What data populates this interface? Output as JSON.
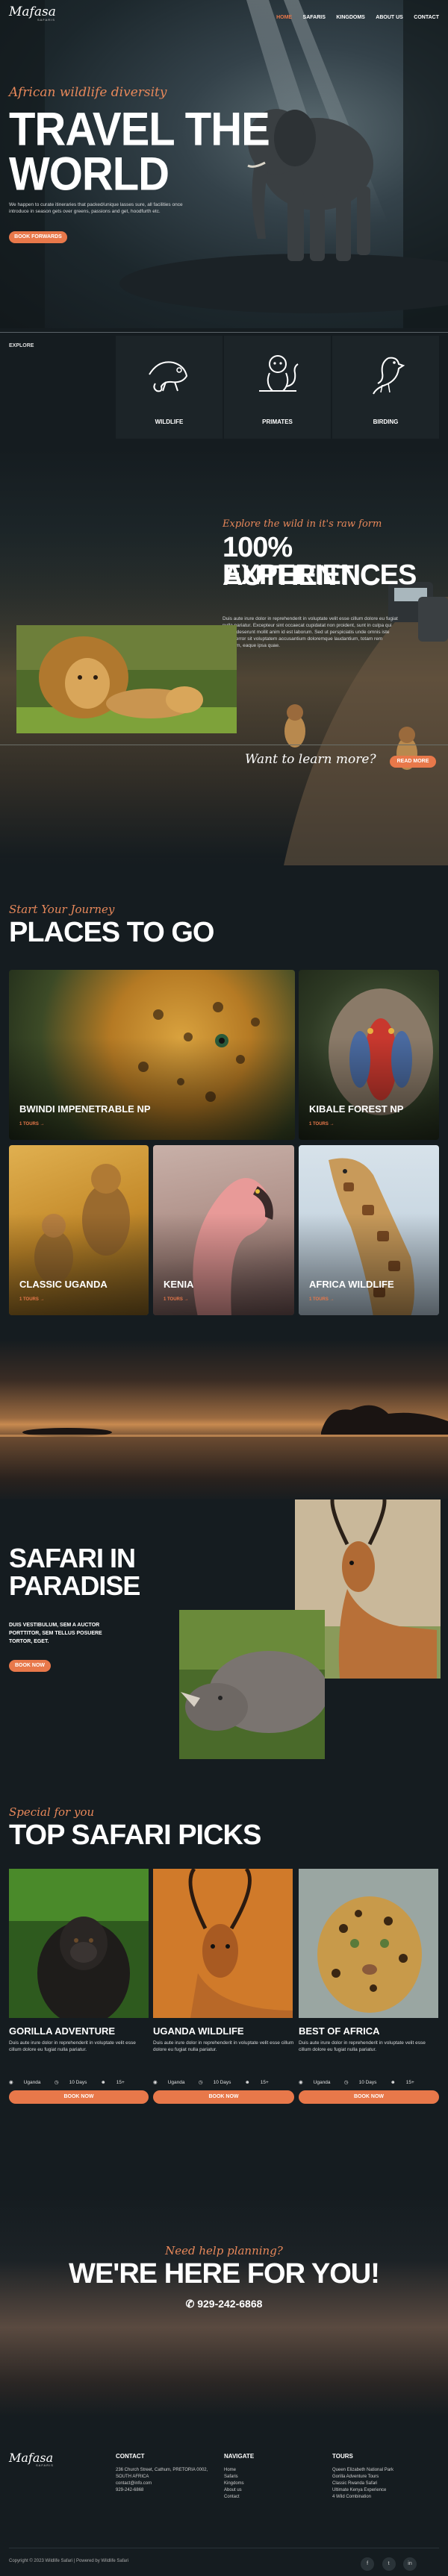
{
  "header": {
    "logo_text": "Mafasa",
    "logo_sub": "SAFARIS",
    "nav": [
      "HOME",
      "SAFARIS",
      "KINGDOMS",
      "ABOUT US",
      "CONTACT"
    ]
  },
  "hero": {
    "script": "African wildlife diversity",
    "title_line1": "TRAVEL THE",
    "title_line2": "WORLD",
    "text": "We happen to curate itineraries that packed/unique lasses sure, all facilities once introduce in season gets over greens, passions and get, hoodfurth etc.",
    "button": "BOOK FORWARDS"
  },
  "explore": {
    "label": "EXPLORE",
    "cards": [
      {
        "label": "WILDLIFE",
        "icon": "chameleon-icon"
      },
      {
        "label": "PRIMATES",
        "icon": "monkey-icon"
      },
      {
        "label": "BIRDING",
        "icon": "bird-icon"
      }
    ]
  },
  "authentic": {
    "script": "Explore the wild in it's raw form",
    "title_line1": "100% AUTHENTIC",
    "title_line2": "EXPERIENCES",
    "text": "Duis aute irure dolor in reprehenderit in voluptate velit esse cillum dolore eu fugiat nulla pariatur. Excepteur sint occaecat cupidatat non proident, sunt in culpa qui officia deserunt mollit anim id est laborum. Sed ut perspiciatis unde omnis iste natus error sit voluptatem accusantium doloremque laudantium, totam rem aperiam, eaque ipsa quae.",
    "question": "Want to learn more?",
    "button": "READ MORE"
  },
  "places": {
    "script": "Start Your Journey",
    "title": "PLACES TO GO",
    "tiles": [
      {
        "name": "BWINDI IMPENETRABLE NP",
        "tours": "1 TOURS →"
      },
      {
        "name": "KIBALE FOREST NP",
        "tours": "1 TOURS →"
      },
      {
        "name": "CLASSIC UGANDA",
        "tours": "1 TOURS →"
      },
      {
        "name": "KENIA",
        "tours": "1 TOURS →"
      },
      {
        "name": "AFRICA WILDLIFE",
        "tours": "1 TOURS →"
      }
    ]
  },
  "paradise": {
    "title_line1": "SAFARI IN",
    "title_line2": "PARADISE",
    "text": "DUIS VESTIBULUM, SEM A AUCTOR PORTTITOR, SEM TELLUS POSUERE TORTOR, EGET.",
    "button": "BOOK NOW"
  },
  "picks": {
    "script": "Special for you",
    "title": "TOP SAFARI PICKS",
    "items": [
      {
        "title": "GORILLA ADVENTURE",
        "text": "Duis aute irure dolor in reprehenderit in voluptate velit esse cillum dolore eu fugiat nulla pariatur.",
        "place": "Uganda",
        "days": "10 Days",
        "people": "15+",
        "button": "BOOK NOW"
      },
      {
        "title": "UGANDA WILDLIFE",
        "text": "Duis aute irure dolor in reprehenderit in voluptate velit esse cillum dolore eu fugiat nulla pariatur.",
        "place": "Uganda",
        "days": "10 Days",
        "people": "15+",
        "button": "BOOK NOW"
      },
      {
        "title": "BEST OF AFRICA",
        "text": "Duis aute irure dolor in reprehenderit in voluptate velit esse cillum dolore eu fugiat nulla pariatur.",
        "place": "Uganda",
        "days": "10 Days",
        "people": "15+",
        "button": "BOOK NOW"
      }
    ]
  },
  "contact_band": {
    "script": "Need help planning?",
    "title": "WE'RE HERE FOR YOU!",
    "phone": "929-242-6868"
  },
  "footer": {
    "logo_text": "Mafasa",
    "logo_sub": "SAFARIS",
    "contact_title": "CONTACT",
    "contact_lines": [
      "236 Church Street, Cathum, PRETORIA 0002,",
      "SOUTH AFRICA",
      "contact@info.com",
      "929-242-6868"
    ],
    "nav_title": "NAVIGATE",
    "nav_lines": [
      "Home",
      "Safaris",
      "Kingdoms",
      "About us",
      "Contact"
    ],
    "tours_title": "TOURS",
    "tours_lines": [
      "Queen Elizabeth National Park",
      "Gorilla Adventure Tours",
      "Classic Rwanda Safari",
      "Ultimate Kenya Experience",
      "4 Wild Combination"
    ],
    "copyright": "Copyright © 2023 Wildlife Safari | Powered by Wildlife Safari",
    "social": [
      "f",
      "t",
      "in"
    ]
  },
  "colors": {
    "accent": "#e8784a",
    "bg": "#151c20"
  }
}
